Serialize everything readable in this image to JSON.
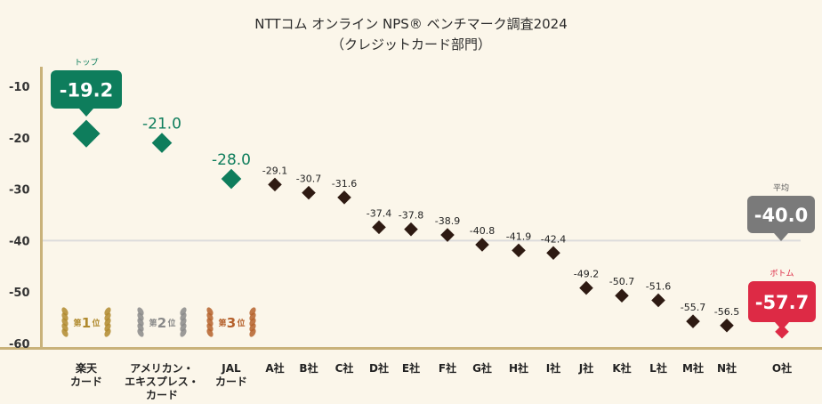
{
  "chart_data": {
    "type": "scatter",
    "title": "NTTコム オンライン NPS® ベンチマーク調査2024",
    "subtitle": "（クレジットカード部門）",
    "ylim": [
      -60,
      -8
    ],
    "yticks": [
      -10,
      -20,
      -30,
      -40,
      -50,
      -60
    ],
    "categories": [
      "楽天カード",
      "アメリカン・エキスプレス・カード",
      "JALカード",
      "A社",
      "B社",
      "C社",
      "D社",
      "E社",
      "F社",
      "G社",
      "H社",
      "I社",
      "J社",
      "K社",
      "L社",
      "M社",
      "N社",
      "O社"
    ],
    "category_lines": [
      [
        "楽天",
        "カード"
      ],
      [
        "アメリカン・",
        "エキスプレス・",
        "カード"
      ],
      [
        "JAL",
        "カード"
      ],
      [
        "A社"
      ],
      [
        "B社"
      ],
      [
        "C社"
      ],
      [
        "D社"
      ],
      [
        "E社"
      ],
      [
        "F社"
      ],
      [
        "G社"
      ],
      [
        "H社"
      ],
      [
        "I社"
      ],
      [
        "J社"
      ],
      [
        "K社"
      ],
      [
        "L社"
      ],
      [
        "M社"
      ],
      [
        "N社"
      ],
      [
        "O社"
      ]
    ],
    "values": [
      -19.2,
      -21.0,
      -28.0,
      -29.1,
      -30.7,
      -31.6,
      -37.4,
      -37.8,
      -38.9,
      -40.8,
      -41.9,
      -42.4,
      -49.2,
      -50.7,
      -51.6,
      -55.7,
      -56.5,
      -57.7
    ],
    "value_labels": [
      "-19.2",
      "-21.0",
      "-28.0",
      "-29.1",
      "-30.7",
      "-31.6",
      "-37.4",
      "-37.8",
      "-38.9",
      "-40.8",
      "-41.9",
      "-42.4",
      "-49.2",
      "-50.7",
      "-51.6",
      "-55.7",
      "-56.5",
      "-57.7"
    ],
    "average": {
      "value": -40.0,
      "label": "-40.0",
      "tag": "平均"
    },
    "top_tag": "トップ",
    "bottom_tag": "ボトム",
    "medals": [
      {
        "prefix": "第",
        "rank": "1",
        "suffix": "位"
      },
      {
        "prefix": "第",
        "rank": "2",
        "suffix": "位"
      },
      {
        "prefix": "第",
        "rank": "3",
        "suffix": "位"
      }
    ]
  },
  "colors": {
    "background": "#fbf6ea",
    "axis": "#c9b27a",
    "green": "#0e7d5c",
    "dark_marker": "#2e1a12",
    "red": "#dd2a45",
    "gray": "#7a7a7a",
    "gold": "#b08a2e",
    "silver": "#8a8a8a",
    "bronze": "#b5612c"
  }
}
